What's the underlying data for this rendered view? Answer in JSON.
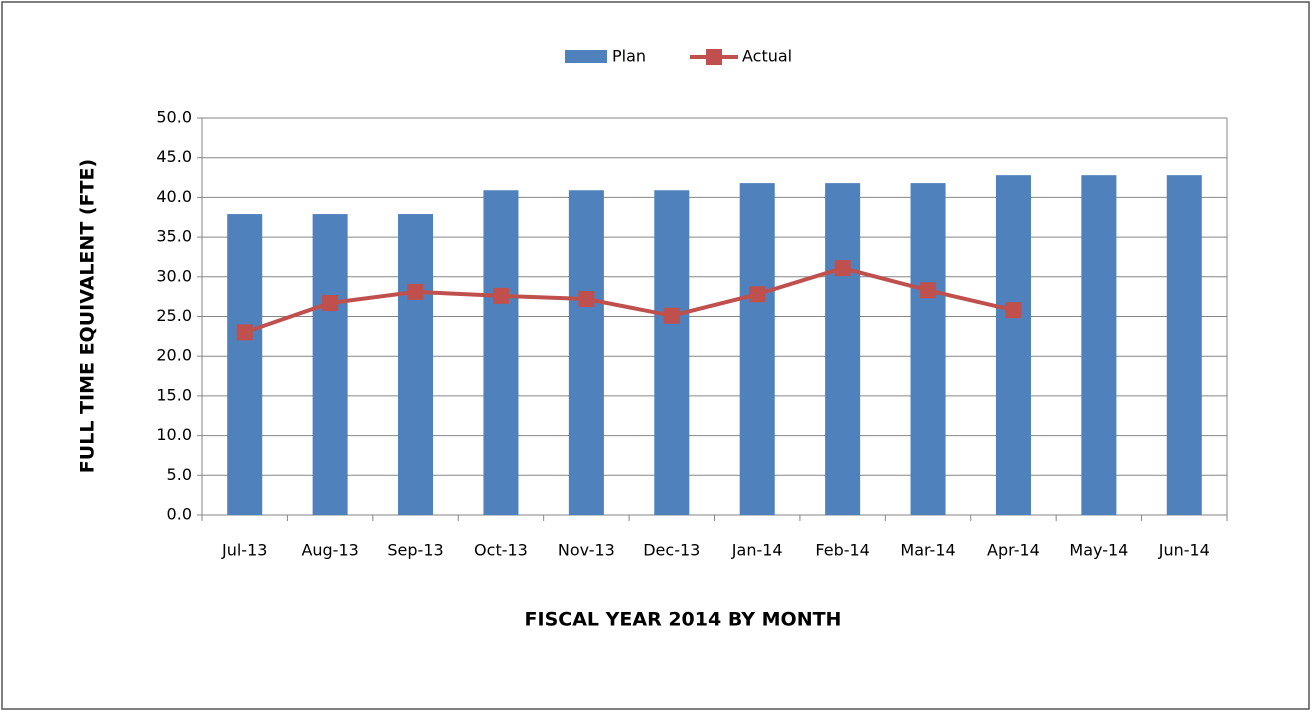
{
  "chart_data": {
    "type": "bar",
    "xlabel": "FISCAL YEAR 2014 BY MONTH",
    "ylabel": "FULL TIME EQUIVALENT (FTE)",
    "categories": [
      "Jul-13",
      "Aug-13",
      "Sep-13",
      "Oct-13",
      "Nov-13",
      "Dec-13",
      "Jan-14",
      "Feb-14",
      "Mar-14",
      "Apr-14",
      "May-14",
      "Jun-14"
    ],
    "series": [
      {
        "name": "Plan",
        "type": "bar",
        "color": "#4f81bd",
        "values": [
          37.9,
          37.9,
          37.9,
          40.9,
          40.9,
          40.9,
          41.8,
          41.8,
          41.8,
          42.8,
          42.8,
          42.8
        ]
      },
      {
        "name": "Actual",
        "type": "line",
        "color": "#c0504d",
        "values": [
          23.0,
          26.7,
          28.1,
          27.6,
          27.2,
          25.1,
          27.8,
          31.1,
          28.3,
          25.8,
          null,
          null
        ]
      }
    ],
    "ylim": [
      0,
      50
    ],
    "yticks": [
      {
        "value": 0,
        "label": "0.0"
      },
      {
        "value": 5,
        "label": "5.0"
      },
      {
        "value": 10,
        "label": "10.0"
      },
      {
        "value": 15,
        "label": "15.0"
      },
      {
        "value": 20,
        "label": "20.0"
      },
      {
        "value": 25,
        "label": "25.0"
      },
      {
        "value": 30,
        "label": "30.0"
      },
      {
        "value": 35,
        "label": "35.0"
      },
      {
        "value": 40,
        "label": "40.0"
      },
      {
        "value": 45,
        "label": "45.0"
      },
      {
        "value": 50,
        "label": "50.0"
      }
    ],
    "grid": true,
    "legend": "top"
  }
}
